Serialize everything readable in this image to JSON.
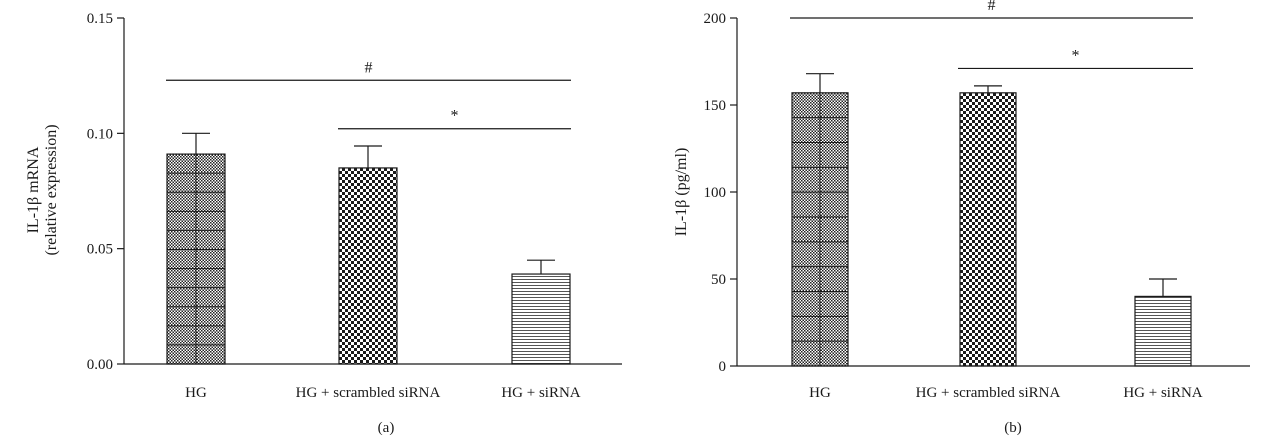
{
  "chart_data": [
    {
      "type": "bar",
      "panel_label": "(a)",
      "ylabel_line1": "IL-1β mRNA",
      "ylabel_line2": "(relative expression)",
      "categories": [
        "HG",
        "HG + scrambled siRNA",
        "HG + siRNA"
      ],
      "values": [
        0.091,
        0.085,
        0.039
      ],
      "errors": [
        0.009,
        0.0095,
        0.006
      ],
      "ylim": [
        0,
        0.15
      ],
      "yticks": [
        0.0,
        0.05,
        0.1,
        0.15
      ],
      "ytick_labels": [
        "0.00",
        "0.05",
        "0.10",
        "0.15"
      ],
      "patterns": [
        "grid",
        "checker",
        "hlines"
      ],
      "significance": [
        {
          "from": 0,
          "to": 2,
          "y": 0.123,
          "label": "#"
        },
        {
          "from": 1,
          "to": 2,
          "y": 0.102,
          "label": "*"
        }
      ]
    },
    {
      "type": "bar",
      "panel_label": "(b)",
      "ylabel": "IL-1β (pg/ml)",
      "categories": [
        "HG",
        "HG + scrambled siRNA",
        "HG + siRNA"
      ],
      "values": [
        157,
        157,
        40
      ],
      "errors": [
        11,
        4,
        10
      ],
      "ylim": [
        0,
        200
      ],
      "yticks": [
        0,
        50,
        100,
        150,
        200
      ],
      "ytick_labels": [
        "0",
        "50",
        "100",
        "150",
        "200"
      ],
      "patterns": [
        "grid",
        "checker",
        "hlines"
      ],
      "significance": [
        {
          "from": 0,
          "to": 2,
          "y": 200,
          "label": "#"
        },
        {
          "from": 1,
          "to": 2,
          "y": 171,
          "label": "*"
        }
      ]
    }
  ]
}
